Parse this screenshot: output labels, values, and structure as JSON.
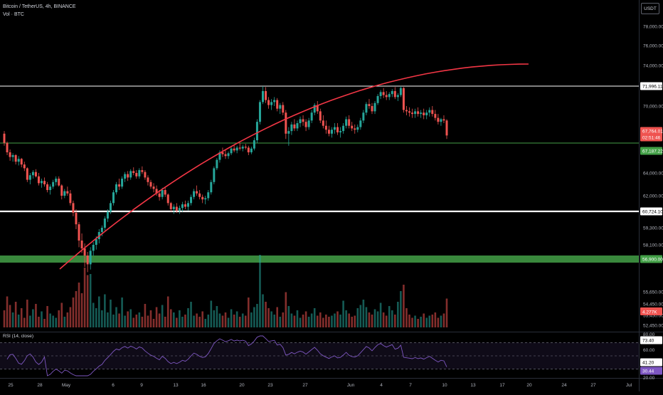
{
  "header": {
    "symbol_line": "Bitcoin / TetherUS, 4h, BINANCE",
    "volume_line": "Vol · BTC"
  },
  "toolbar": {
    "currency": "USDT"
  },
  "rsi_label": "RSI (14, close)",
  "colors": {
    "up": "#26a69a",
    "down": "#ef5350",
    "curve": "#f23645",
    "zone": "#43a047",
    "rsi": "#7e57c2",
    "background": "#000000"
  },
  "chart_data": {
    "type": "candlestick",
    "price_axis": {
      "ticks": [
        "78,000.00",
        "76,000.00",
        "74,000.00",
        "70,000.00",
        "64,000.00",
        "62,000.00",
        "59,300.00",
        "58,100.00",
        "55,650.00",
        "54,450.00",
        "53,450.00",
        "52,450.00"
      ],
      "tick_values": [
        78000,
        76000,
        74000,
        70000,
        64000,
        62000,
        59300,
        58100,
        55650,
        54450,
        53450,
        52450
      ]
    },
    "x_axis": {
      "labels": [
        "25",
        "28",
        "May",
        "6",
        "9",
        "13",
        "16",
        "20",
        "23",
        "27",
        "Jun",
        "4",
        "7",
        "10",
        "13",
        "17",
        "20",
        "24",
        "27",
        "Jul"
      ]
    },
    "levels": [
      {
        "value": 71996.11,
        "label": "71,996.11",
        "color": "#ffffff",
        "bold": false
      },
      {
        "value": 60724.1,
        "label": "60,724.10",
        "color": "#ffffff",
        "bold": true
      },
      {
        "value": 67187.22,
        "label": "67,187.22",
        "color": "#43a047",
        "bold": false
      }
    ],
    "zone": {
      "label": "56,900.00",
      "value": 56900
    },
    "last_price": {
      "value": 67764.01,
      "label": "67,764.01",
      "countdown": "02:51:46"
    },
    "volume_label": "4.277K",
    "rsi": {
      "axis_labels": [
        "80.00",
        "60.00",
        "20.00"
      ],
      "badges": [
        "73.40",
        "41.20",
        "30.44"
      ],
      "upper": 70,
      "lower": 30
    },
    "trend_curve": {
      "from": [
        "Apr 29",
        56600
      ],
      "to": [
        "Jun 19",
        71000
      ]
    },
    "candles": [
      [
        67900,
        68100,
        66900,
        67200
      ],
      [
        67200,
        67300,
        65900,
        66200
      ],
      [
        66200,
        66500,
        65300,
        65700
      ],
      [
        65700,
        66100,
        65200,
        65900
      ],
      [
        65900,
        66000,
        64900,
        65200
      ],
      [
        65200,
        65800,
        64800,
        65500
      ],
      [
        65500,
        65600,
        64600,
        64900
      ],
      [
        64900,
        65200,
        64200,
        64500
      ],
      [
        64500,
        64600,
        63200,
        63400
      ],
      [
        63400,
        64000,
        63000,
        63800
      ],
      [
        63800,
        64300,
        63500,
        64100
      ],
      [
        64100,
        64400,
        63600,
        63700
      ],
      [
        63700,
        64000,
        62900,
        63100
      ],
      [
        63100,
        63500,
        62700,
        63300
      ],
      [
        63300,
        63600,
        62800,
        63000
      ],
      [
        63000,
        63200,
        62300,
        62500
      ],
      [
        62500,
        63000,
        62100,
        62800
      ],
      [
        62800,
        63400,
        62600,
        63200
      ],
      [
        63200,
        63700,
        62900,
        63500
      ],
      [
        63500,
        63700,
        62800,
        62900
      ],
      [
        62900,
        63000,
        61700,
        62000
      ],
      [
        62000,
        62600,
        61800,
        62400
      ],
      [
        62400,
        62800,
        62000,
        62200
      ],
      [
        62200,
        62500,
        61200,
        61400
      ],
      [
        61400,
        61600,
        60300,
        60600
      ],
      [
        60600,
        60900,
        59200,
        59600
      ],
      [
        59600,
        59800,
        57900,
        58400
      ],
      [
        58400,
        58900,
        57400,
        57800
      ],
      [
        57800,
        58200,
        56600,
        57200
      ],
      [
        57200,
        57500,
        56400,
        56700
      ],
      [
        56700,
        57900,
        56500,
        57600
      ],
      [
        57600,
        58300,
        57200,
        58100
      ],
      [
        58100,
        58700,
        57700,
        58500
      ],
      [
        58500,
        59200,
        58200,
        59000
      ],
      [
        59000,
        59500,
        58700,
        59300
      ],
      [
        59300,
        60300,
        59100,
        60100
      ],
      [
        60100,
        60900,
        59800,
        60700
      ],
      [
        60700,
        61600,
        60500,
        61400
      ],
      [
        61400,
        62500,
        61200,
        62300
      ],
      [
        62300,
        63200,
        62100,
        63000
      ],
      [
        63000,
        63500,
        62500,
        62800
      ],
      [
        62800,
        63700,
        62600,
        63500
      ],
      [
        63500,
        64100,
        63200,
        63900
      ],
      [
        63900,
        64200,
        63300,
        63600
      ],
      [
        63600,
        64400,
        63400,
        64200
      ],
      [
        64200,
        64600,
        63800,
        64000
      ],
      [
        64000,
        64300,
        63500,
        63700
      ],
      [
        63700,
        64500,
        63500,
        64300
      ],
      [
        64300,
        64700,
        63900,
        64100
      ],
      [
        64100,
        64300,
        63400,
        63600
      ],
      [
        63600,
        63800,
        62900,
        63200
      ],
      [
        63200,
        63400,
        62600,
        62800
      ],
      [
        62800,
        63100,
        62300,
        62600
      ],
      [
        62600,
        62900,
        62000,
        62200
      ],
      [
        62200,
        62500,
        61600,
        61900
      ],
      [
        61900,
        62700,
        61700,
        62500
      ],
      [
        62500,
        62800,
        61900,
        62100
      ],
      [
        62100,
        62200,
        61200,
        61400
      ],
      [
        61400,
        61500,
        60700,
        60900
      ],
      [
        60900,
        61300,
        60500,
        61100
      ],
      [
        61100,
        61400,
        60600,
        60800
      ],
      [
        60800,
        61200,
        60500,
        61000
      ],
      [
        61000,
        61500,
        60700,
        61300
      ],
      [
        61300,
        61600,
        60900,
        61100
      ],
      [
        61100,
        61600,
        60800,
        61400
      ],
      [
        61400,
        62100,
        61200,
        61900
      ],
      [
        61900,
        62600,
        61700,
        62400
      ],
      [
        62400,
        62900,
        62000,
        62200
      ],
      [
        62200,
        62500,
        61700,
        61900
      ],
      [
        61900,
        62100,
        61400,
        61700
      ],
      [
        61700,
        62000,
        61300,
        61800
      ],
      [
        61800,
        62500,
        61600,
        62300
      ],
      [
        62300,
        63400,
        62100,
        63200
      ],
      [
        63200,
        64700,
        63000,
        64500
      ],
      [
        64500,
        65600,
        64300,
        65400
      ],
      [
        65400,
        66400,
        65100,
        66200
      ],
      [
        66200,
        66700,
        65700,
        66000
      ],
      [
        66000,
        66400,
        65500,
        65800
      ],
      [
        65800,
        66300,
        65500,
        66100
      ],
      [
        66100,
        66800,
        65900,
        66600
      ],
      [
        66600,
        67000,
        66200,
        66400
      ],
      [
        66400,
        66900,
        66100,
        66700
      ],
      [
        66700,
        67200,
        66400,
        66600
      ],
      [
        66600,
        67000,
        66300,
        66800
      ],
      [
        66800,
        67100,
        66500,
        66700
      ],
      [
        66700,
        66900,
        65900,
        66200
      ],
      [
        66200,
        66800,
        66000,
        66600
      ],
      [
        66600,
        67600,
        66400,
        67400
      ],
      [
        67400,
        69000,
        67200,
        68800
      ],
      [
        68800,
        70600,
        68600,
        70400
      ],
      [
        70400,
        72000,
        70200,
        71500
      ],
      [
        71500,
        71900,
        70300,
        70600
      ],
      [
        70600,
        70900,
        69800,
        70100
      ],
      [
        70100,
        70700,
        69700,
        70400
      ],
      [
        70400,
        70900,
        70000,
        70600
      ],
      [
        70600,
        70800,
        69600,
        69800
      ],
      [
        69800,
        70300,
        69400,
        70100
      ],
      [
        70100,
        70400,
        69300,
        69500
      ],
      [
        69500,
        69700,
        67500,
        67900
      ],
      [
        67900,
        68400,
        66900,
        68100
      ],
      [
        68100,
        68800,
        67800,
        68600
      ],
      [
        68600,
        69000,
        68100,
        68300
      ],
      [
        68300,
        68900,
        68100,
        68700
      ],
      [
        68700,
        69200,
        68400,
        69000
      ],
      [
        69000,
        69300,
        68500,
        68800
      ],
      [
        68800,
        69000,
        68100,
        68400
      ],
      [
        68400,
        69100,
        68200,
        68900
      ],
      [
        68900,
        69700,
        68700,
        69500
      ],
      [
        69500,
        70300,
        69300,
        70100
      ],
      [
        70100,
        70500,
        69400,
        69600
      ],
      [
        69600,
        69800,
        68700,
        68900
      ],
      [
        68900,
        69300,
        68300,
        68500
      ],
      [
        68500,
        68900,
        67900,
        68200
      ],
      [
        68200,
        68500,
        67700,
        67900
      ],
      [
        67900,
        68400,
        67600,
        68200
      ],
      [
        68200,
        68700,
        67900,
        68400
      ],
      [
        68400,
        68700,
        67800,
        68000
      ],
      [
        68000,
        68400,
        67600,
        68100
      ],
      [
        68100,
        68700,
        67900,
        68500
      ],
      [
        68500,
        69200,
        68300,
        69000
      ],
      [
        69000,
        69300,
        68300,
        68500
      ],
      [
        68500,
        68800,
        68100,
        68300
      ],
      [
        68300,
        68600,
        67900,
        68200
      ],
      [
        68200,
        68600,
        68000,
        68400
      ],
      [
        68400,
        69100,
        68200,
        68900
      ],
      [
        68900,
        69700,
        68700,
        69500
      ],
      [
        69500,
        70400,
        69300,
        70200
      ],
      [
        70200,
        70700,
        69800,
        70000
      ],
      [
        70000,
        70300,
        69400,
        69600
      ],
      [
        69600,
        70500,
        69400,
        70300
      ],
      [
        70300,
        71200,
        70100,
        71000
      ],
      [
        71000,
        71600,
        70700,
        71400
      ],
      [
        71400,
        71800,
        70800,
        71100
      ],
      [
        71100,
        71500,
        70600,
        70900
      ],
      [
        70900,
        71400,
        70600,
        71200
      ],
      [
        71200,
        71700,
        70900,
        71500
      ],
      [
        71500,
        71900,
        70700,
        70900
      ],
      [
        70900,
        71300,
        70500,
        71100
      ],
      [
        71100,
        72000,
        70900,
        71800
      ],
      [
        71800,
        71900,
        69500,
        69700
      ],
      [
        69700,
        70000,
        69300,
        69600
      ],
      [
        69600,
        69900,
        69200,
        69500
      ],
      [
        69500,
        69800,
        69100,
        69400
      ],
      [
        69400,
        69800,
        69100,
        69600
      ],
      [
        69600,
        69900,
        69200,
        69400
      ],
      [
        69400,
        69700,
        69100,
        69500
      ],
      [
        69500,
        69800,
        69000,
        69300
      ],
      [
        69300,
        69700,
        69000,
        69500
      ],
      [
        69500,
        69900,
        69200,
        69700
      ],
      [
        69700,
        70000,
        69200,
        69400
      ],
      [
        69400,
        69700,
        68900,
        69100
      ],
      [
        69100,
        69400,
        68600,
        68800
      ],
      [
        68800,
        69100,
        68500,
        69000
      ],
      [
        69000,
        69300,
        68700,
        68900
      ],
      [
        68900,
        69000,
        67500,
        67764
      ]
    ],
    "volumes": [
      1.6,
      2.9,
      2.1,
      1.4,
      2.4,
      1.2,
      1.8,
      0.9,
      2.6,
      1.1,
      1.7,
      2.2,
      1.0,
      1.5,
      0.8,
      2.0,
      1.3,
      1.1,
      0.9,
      1.6,
      2.3,
      1.0,
      1.4,
      1.9,
      2.8,
      3.4,
      4.2,
      3.2,
      5.6,
      4.9,
      5.0,
      2.3,
      1.8,
      2.9,
      1.6,
      3.1,
      1.4,
      2.6,
      1.2,
      1.9,
      1.3,
      2.8,
      1.1,
      1.5,
      1.7,
      0.9,
      1.2,
      1.4,
      1.0,
      2.2,
      1.1,
      1.6,
      0.8,
      1.9,
      1.3,
      2.1,
      1.0,
      2.9,
      1.7,
      1.4,
      0.9,
      1.6,
      1.0,
      1.2,
      1.8,
      2.4,
      1.1,
      1.3,
      1.0,
      1.5,
      0.8,
      1.2,
      2.5,
      1.6,
      2.0,
      1.3,
      1.1,
      1.4,
      0.9,
      1.7,
      1.2,
      1.5,
      1.0,
      1.3,
      1.1,
      2.8,
      1.4,
      1.9,
      2.2,
      6.8,
      3.1,
      2.4,
      1.8,
      1.5,
      1.2,
      1.9,
      1.0,
      1.4,
      3.3,
      2.0,
      1.3,
      1.1,
      1.6,
      0.9,
      1.2,
      1.5,
      1.0,
      1.3,
      1.8,
      1.1,
      1.4,
      0.9,
      1.2,
      1.0,
      1.1,
      1.3,
      1.5,
      1.2,
      2.5,
      1.6,
      1.3,
      1.0,
      1.1,
      1.8,
      2.1,
      2.6,
      1.9,
      1.4,
      1.2,
      1.7,
      1.5,
      2.3,
      1.4,
      1.1,
      2.0,
      1.6,
      1.2,
      2.4,
      3.4,
      4.0,
      1.8,
      1.2,
      0.9,
      1.1,
      0.8,
      1.0,
      1.3,
      0.9,
      1.1,
      1.2,
      1.4,
      0.9,
      1.1,
      1.3,
      2.7
    ]
  }
}
